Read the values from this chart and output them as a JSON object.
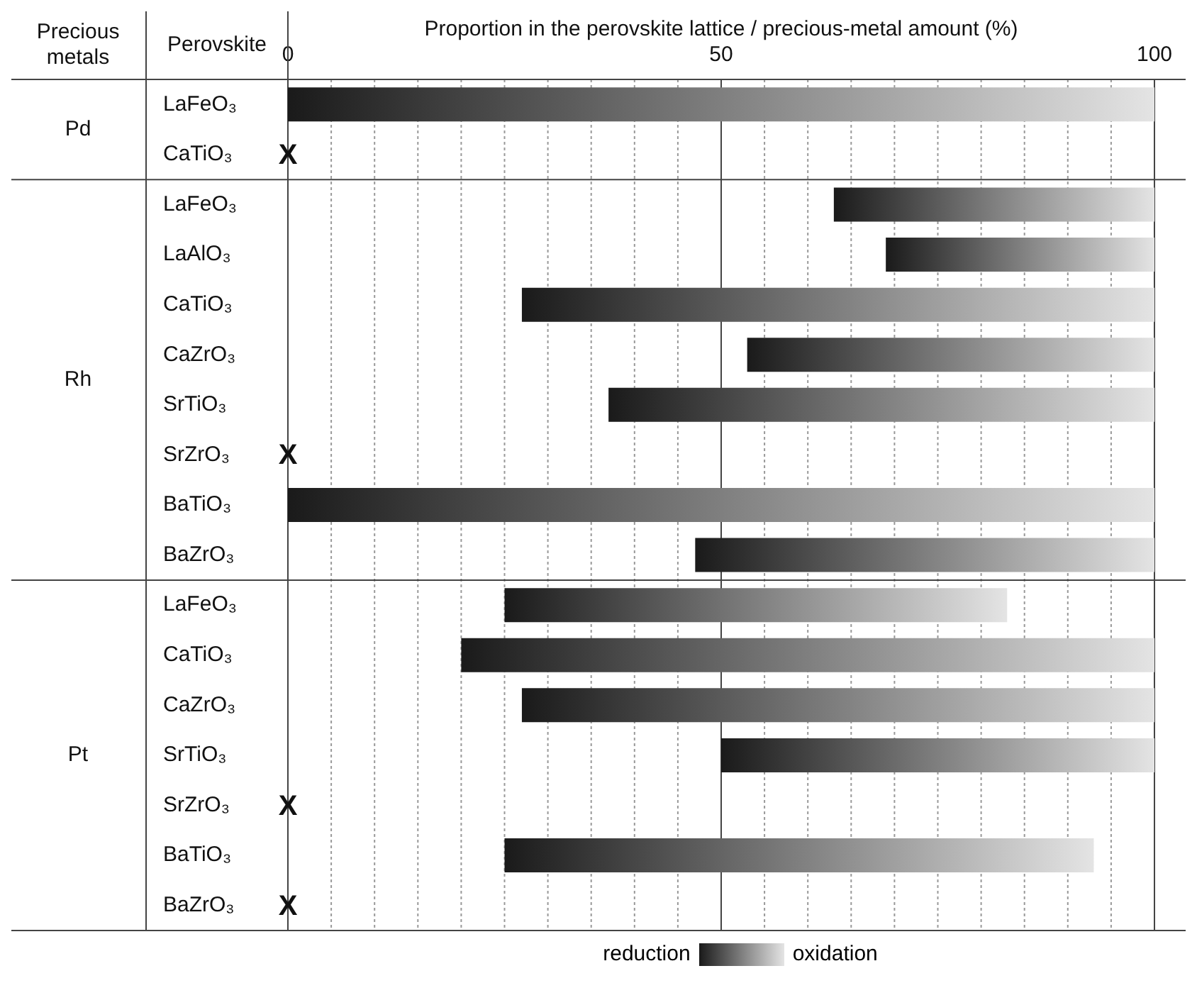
{
  "chart_data": {
    "type": "bar",
    "orientation": "horizontal",
    "xlabel": "Proportion in the perovskite lattice / precious-metal amount (%)",
    "categories": [
      "LaFeO₃",
      "CaTiO₃",
      "LaFeO₃",
      "LaAlO₃",
      "CaTiO₃",
      "CaZrO₃",
      "SrTiO₃",
      "SrZrO₃",
      "BaTiO₃",
      "BaZrO₃",
      "LaFeO₃",
      "CaTiO₃",
      "CaZrO₃",
      "SrTiO₃",
      "SrZrO₃",
      "BaTiO₃",
      "BaZrO₃"
    ],
    "series": [
      {
        "color": "#1a1a1a",
        "values": [
          100,
          null,
          37,
          31,
          73,
          47,
          63,
          null,
          100,
          53,
          58,
          80,
          73,
          50,
          null,
          68,
          null
        ],
        "base": [
          0,
          null,
          63,
          69,
          27,
          53,
          37,
          null,
          0,
          47,
          25,
          20,
          27,
          50,
          null,
          25,
          null
        ],
        "value_labels": [
          null,
          "X",
          null,
          null,
          null,
          null,
          null,
          "X",
          null,
          null,
          null,
          null,
          null,
          null,
          "X",
          null,
          "X"
        ]
      }
    ],
    "xlim": [
      0,
      100
    ],
    "xticks": [
      0,
      {
        "value": 5,
        "label": null
      },
      {
        "value": 10,
        "label": null
      },
      {
        "value": 15,
        "label": null
      },
      {
        "value": 20,
        "label": null
      },
      {
        "value": 25,
        "label": null
      },
      {
        "value": 30,
        "label": null
      },
      {
        "value": 35,
        "label": null
      },
      {
        "value": 40,
        "label": null
      },
      {
        "value": 45,
        "label": null
      },
      50,
      {
        "value": 55,
        "label": null
      },
      {
        "value": 60,
        "label": null
      },
      {
        "value": 65,
        "label": null
      },
      {
        "value": 70,
        "label": null
      },
      {
        "value": 75,
        "label": null
      },
      {
        "value": 80,
        "label": null
      },
      {
        "value": 85,
        "label": null
      },
      {
        "value": 90,
        "label": null
      },
      {
        "value": 95,
        "label": null
      },
      100
    ],
    "grid": "x",
    "annotations": [
      "Precious metals",
      "Perovskite",
      "Pd",
      "Rh",
      "Pt",
      "reduction",
      "oxidation"
    ]
  }
}
